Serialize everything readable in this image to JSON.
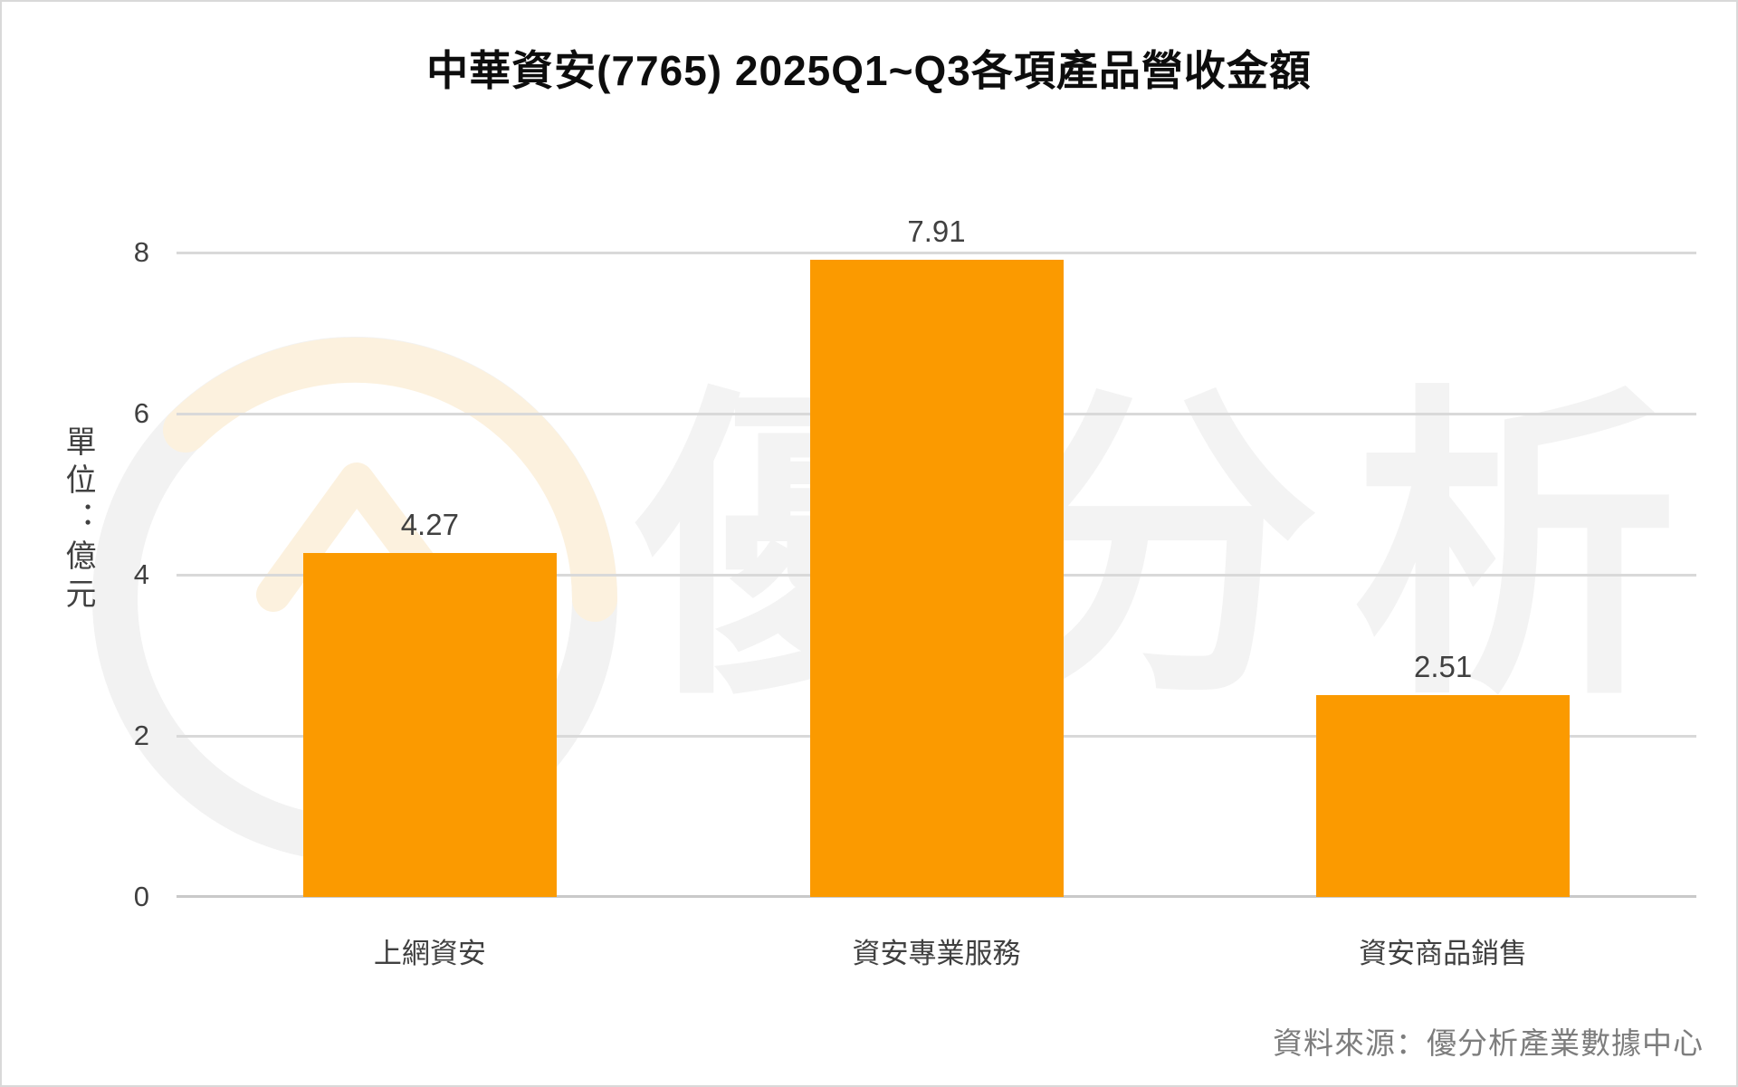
{
  "source": "資料來源：優分析產業數據中心",
  "watermark": "優分析",
  "colors": {
    "bar": "#FB9A00",
    "grid": "#D9D9D9",
    "axis_line": "#C9C9C9",
    "text": "#404040",
    "title_text": "#0D0D0D",
    "source_text": "#7D7D7D",
    "watermark_ring_gray": "#F2F2F2",
    "watermark_ring_cream": "#FCF1DE"
  },
  "chart_data": {
    "type": "bar",
    "title": "中華資安(7765) 2025Q1~Q3各項產品營收金額",
    "categories": [
      "上網資安",
      "資安專業服務",
      "資安商品銷售"
    ],
    "values": [
      4.27,
      7.91,
      2.51
    ],
    "value_labels": [
      "4.27",
      "7.91",
      "2.51"
    ],
    "ylabel": "單位：億元",
    "xlabel": "",
    "yticks": [
      0,
      2,
      4,
      6,
      8
    ],
    "ylim": [
      0,
      8
    ],
    "grid": true,
    "legend": "none",
    "bar_color": "#FB9A00"
  }
}
